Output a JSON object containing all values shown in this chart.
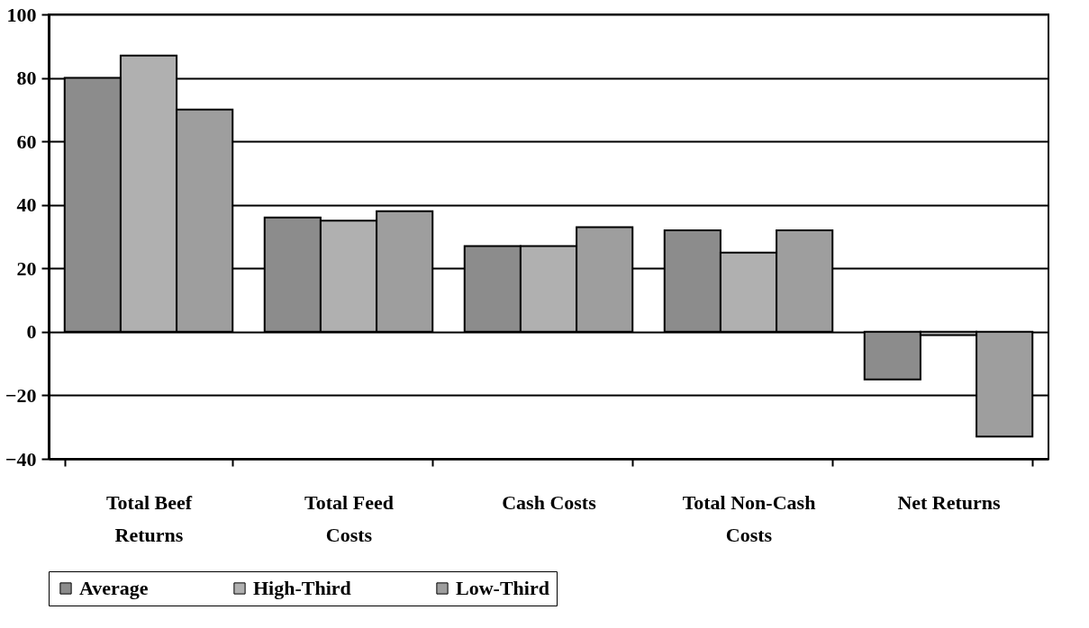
{
  "chart_data": {
    "type": "bar",
    "categories": [
      "Total Beef Returns",
      "Total Feed Costs",
      "Cash Costs",
      "Total Non-Cash Costs",
      "Net Returns"
    ],
    "series": [
      {
        "name": "Average",
        "color": "#8c8c8c",
        "values": [
          80,
          36,
          27,
          32,
          -15
        ]
      },
      {
        "name": "High-Third",
        "color": "#b0b0b0",
        "values": [
          87,
          35,
          27,
          25,
          -1
        ]
      },
      {
        "name": "Low-Third",
        "color": "#9e9e9e",
        "values": [
          70,
          38,
          33,
          32,
          -33
        ]
      }
    ],
    "ylim": [
      -40,
      100
    ],
    "yticks": [
      -40,
      -20,
      0,
      20,
      40,
      60,
      80,
      100
    ],
    "grid": "y",
    "legend": "bottom"
  }
}
